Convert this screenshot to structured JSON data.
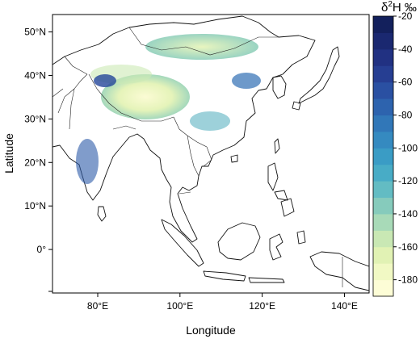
{
  "map": {
    "y_axis_title": "Latitude",
    "x_axis_title": "Longitude",
    "y_ticks": [
      {
        "value": 50,
        "label": "50°N"
      },
      {
        "value": 40,
        "label": "40°N"
      },
      {
        "value": 30,
        "label": "30°N"
      },
      {
        "value": 20,
        "label": "20°N"
      },
      {
        "value": 10,
        "label": "10°N"
      },
      {
        "value": 0,
        "label": "0°"
      }
    ],
    "x_ticks": [
      {
        "value": 80,
        "label": "80°E"
      },
      {
        "value": 100,
        "label": "100°E"
      },
      {
        "value": 120,
        "label": "120°E"
      },
      {
        "value": 140,
        "label": "140°E"
      }
    ],
    "lon_range": [
      69,
      146
    ],
    "lat_range": [
      -10,
      54
    ],
    "land_color": "#3f8ec2",
    "ocean_color": "#ffffff"
  },
  "legend": {
    "title_symbol": "δ",
    "title_superscript": "2",
    "title_rest": "H ‰",
    "scale_min": -190,
    "scale_max": -20,
    "ticks": [
      -20,
      -40,
      -60,
      -80,
      -100,
      -120,
      -140,
      -160,
      -180
    ],
    "colors": [
      "#fdfdd6",
      "#f1f9c4",
      "#e1f2b4",
      "#c9e8b4",
      "#a8dab8",
      "#86cbbc",
      "#63bcc3",
      "#48acc6",
      "#3a9cc5",
      "#358ac0",
      "#3177b8",
      "#2d63ae",
      "#2a50a2",
      "#263e92",
      "#213182",
      "#1a2870",
      "#13205c"
    ]
  }
}
